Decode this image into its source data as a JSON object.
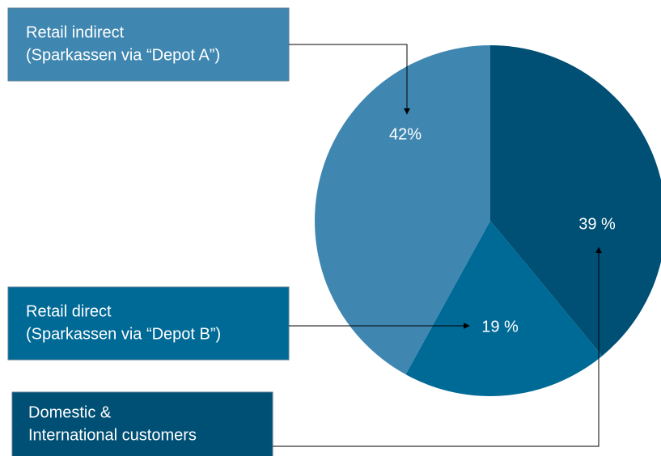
{
  "chart_data": {
    "type": "pie",
    "categories": [
      [
        "Domestic &",
        "International customers"
      ],
      [
        "Retail direct",
        "(Sparkassen via “Depot B”)"
      ],
      [
        "Retail indirect",
        "(Sparkassen via “Depot A”)"
      ]
    ],
    "values": [
      39,
      19,
      42
    ],
    "value_labels": [
      "39 %",
      "19 %",
      "42%"
    ],
    "colors": [
      "#004f74",
      "#006a96",
      "#3f87b1"
    ]
  }
}
